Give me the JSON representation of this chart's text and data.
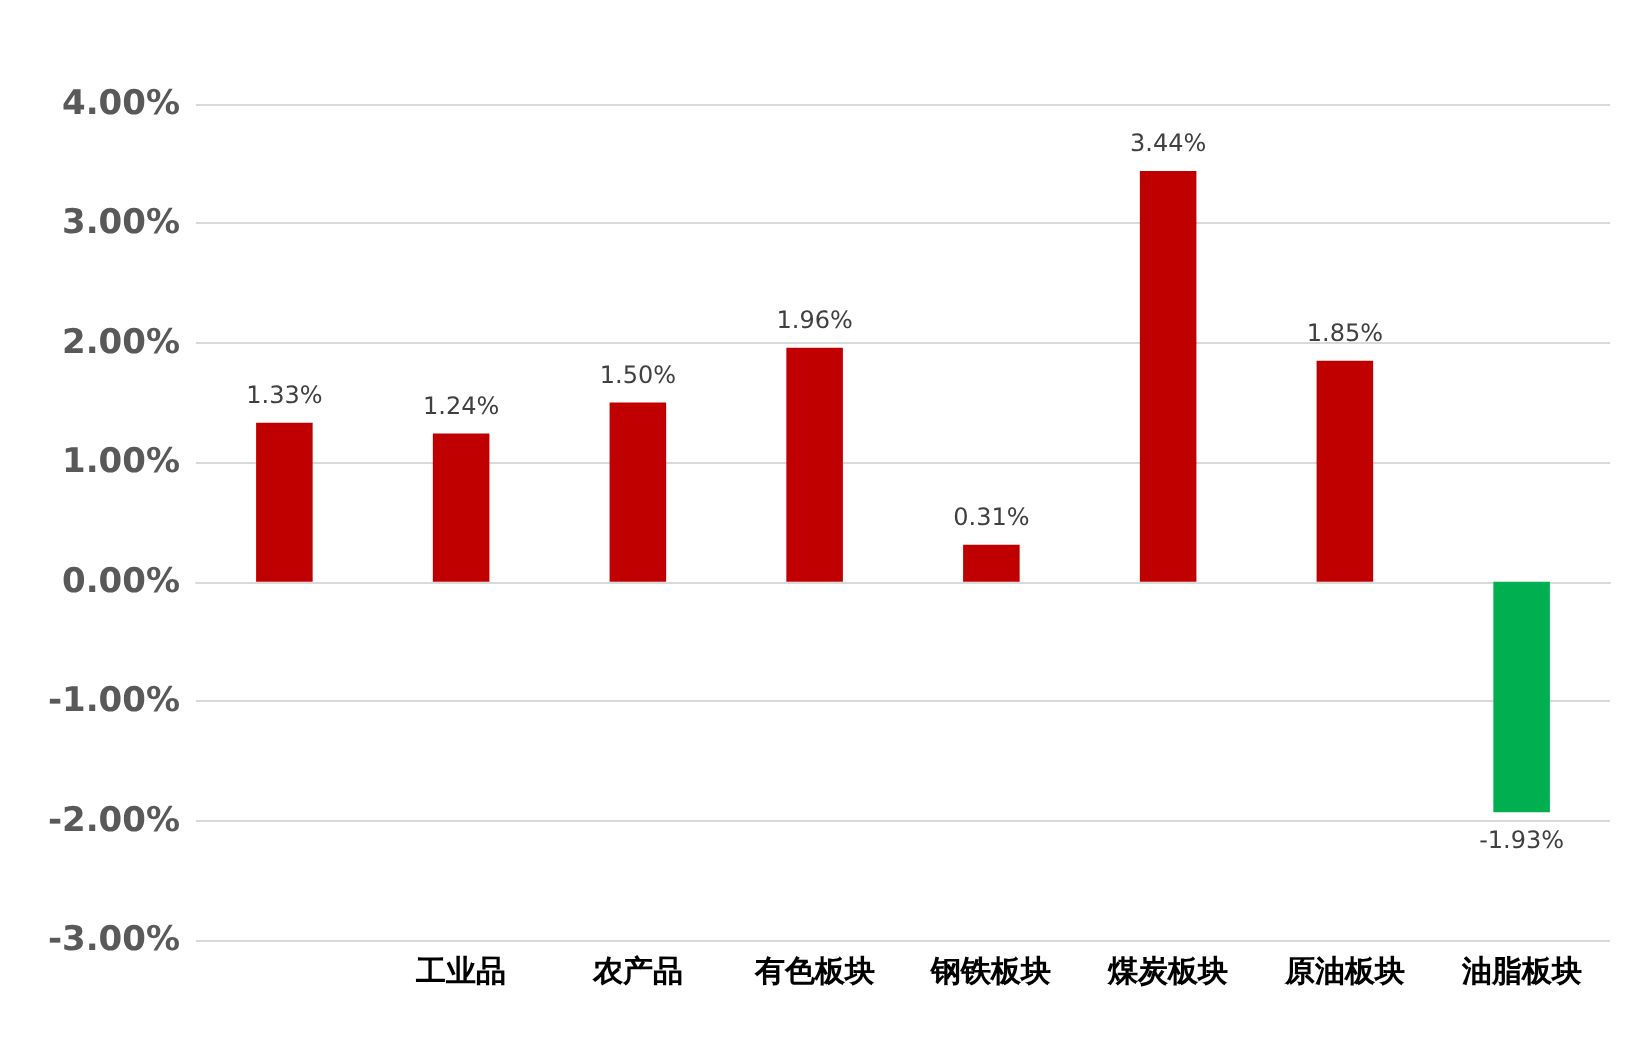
{
  "chart_data": {
    "type": "bar",
    "categories": [
      null,
      "工业品",
      "农产品",
      "有色板块",
      "钢铁板块",
      "煤炭板块",
      "原油板块",
      "油脂板块"
    ],
    "values": [
      1.33,
      1.24,
      1.5,
      1.96,
      0.31,
      3.44,
      1.85,
      -1.93
    ],
    "colors": [
      "#c00000",
      "#c00000",
      "#c00000",
      "#c00000",
      "#c00000",
      "#c00000",
      "#c00000",
      "#00b050"
    ],
    "value_labels": [
      "1.33%",
      "1.24%",
      "1.50%",
      "1.96%",
      "0.31%",
      "3.44%",
      "1.85%",
      "-1.93%"
    ],
    "ylim": [
      -3,
      4
    ],
    "yticks": [
      {
        "value": -3,
        "label": "-3.00%"
      },
      {
        "value": -2,
        "label": "-2.00%"
      },
      {
        "value": -1,
        "label": "-1.00%"
      },
      {
        "value": 0,
        "label": "0.00%"
      },
      {
        "value": 1,
        "label": "1.00%"
      },
      {
        "value": 2,
        "label": "2.00%"
      },
      {
        "value": 3,
        "label": "3.00%"
      },
      {
        "value": 4,
        "label": "4.00%"
      }
    ],
    "grid": true
  }
}
